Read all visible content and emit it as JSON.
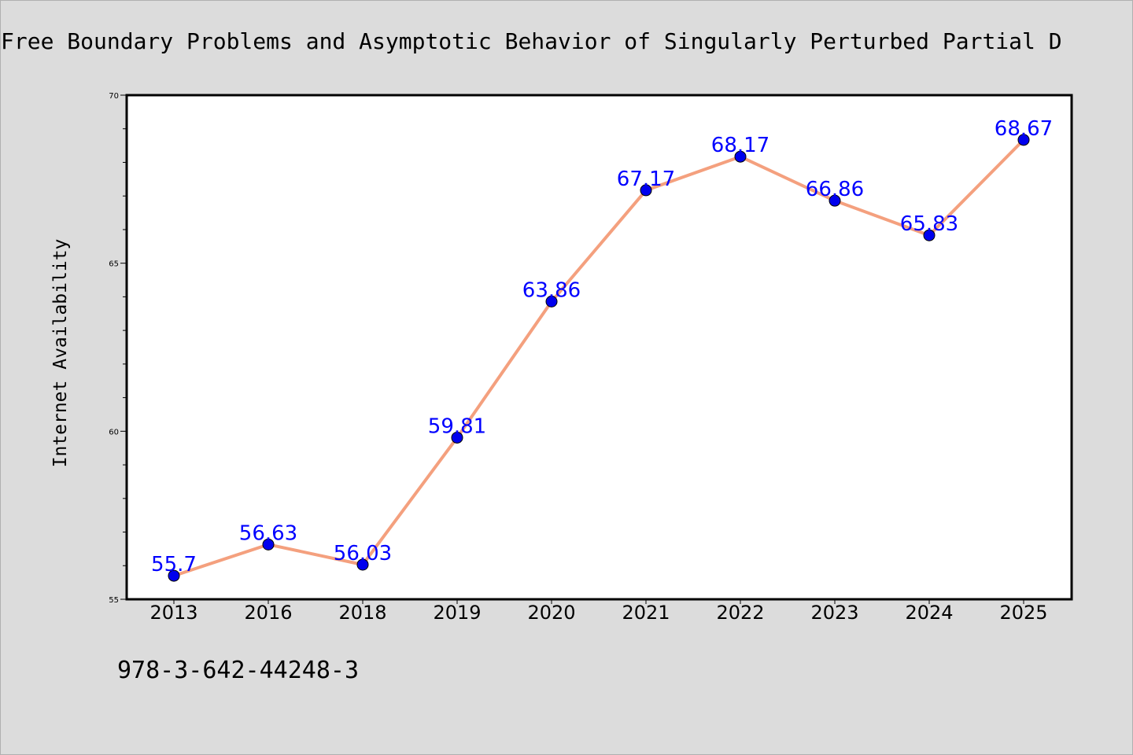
{
  "chart_data": {
    "type": "line",
    "title": "Free Boundary Problems and Asymptotic Behavior of Singularly Perturbed Partial D",
    "xlabel": "",
    "ylabel": "Internet Availability",
    "categories": [
      "2013",
      "2016",
      "2018",
      "2019",
      "2020",
      "2021",
      "2022",
      "2023",
      "2024",
      "2025"
    ],
    "series": [
      {
        "values": [
          55.7,
          56.63,
          56.03,
          59.81,
          63.86,
          67.17,
          68.17,
          66.86,
          65.83,
          68.67
        ],
        "data_labels": [
          "55.7",
          "56.63",
          "56.03",
          "59.81",
          "63.86",
          "67.17",
          "68.17",
          "66.86",
          "65.83",
          "68.67"
        ]
      }
    ],
    "ylim": [
      55,
      70
    ],
    "y_ticks": [
      55,
      60,
      65,
      70
    ],
    "grid": false,
    "line_color": "#f4a07e",
    "marker_color": "#0000ee",
    "label_color": "#0000ff"
  },
  "footer": {
    "isbn": "978-3-642-44248-3"
  }
}
